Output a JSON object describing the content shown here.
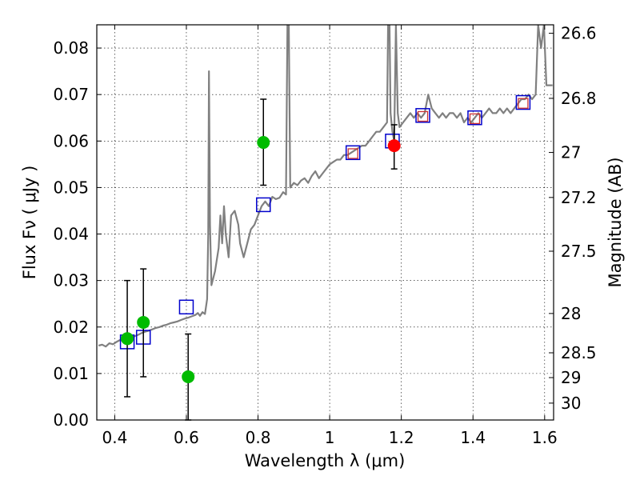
{
  "chart_data": {
    "type": "scatter",
    "xlabel": "Wavelength  λ (μm)",
    "ylabel": "Flux  Fν  ( μJy )",
    "y2label": "Magnitude (AB)",
    "xlim": [
      0.35,
      1.625
    ],
    "ylim": [
      0.0,
      0.085
    ],
    "grid": true,
    "x_ticks": [
      {
        "value": 0.4,
        "label": "0.4"
      },
      {
        "value": 0.6,
        "label": "0.6"
      },
      {
        "value": 0.8,
        "label": "0.8"
      },
      {
        "value": 1.0,
        "label": "1"
      },
      {
        "value": 1.2,
        "label": "1.2"
      },
      {
        "value": 1.4,
        "label": "1.4"
      },
      {
        "value": 1.6,
        "label": "1.6"
      }
    ],
    "y_ticks": [
      {
        "value": 0.0,
        "label": "0.00"
      },
      {
        "value": 0.01,
        "label": "0.01"
      },
      {
        "value": 0.02,
        "label": "0.02"
      },
      {
        "value": 0.03,
        "label": "0.03"
      },
      {
        "value": 0.04,
        "label": "0.04"
      },
      {
        "value": 0.05,
        "label": "0.05"
      },
      {
        "value": 0.06,
        "label": "0.06"
      },
      {
        "value": 0.07,
        "label": "0.07"
      },
      {
        "value": 0.08,
        "label": "0.08"
      }
    ],
    "mag_ticks": [
      {
        "mag": 26.6,
        "label": "26.6"
      },
      {
        "mag": 26.8,
        "label": "26.8"
      },
      {
        "mag": 27.0,
        "label": "27"
      },
      {
        "mag": 27.2,
        "label": "27.2"
      },
      {
        "mag": 27.5,
        "label": "27.5"
      },
      {
        "mag": 28.0,
        "label": "28"
      },
      {
        "mag": 28.5,
        "label": "28.5"
      },
      {
        "mag": 29.0,
        "label": "29"
      },
      {
        "mag": 30.0,
        "label": "30"
      }
    ],
    "colors": {
      "spectrum": "#808080",
      "model_square": "#0000cc",
      "detection": "#00bb00",
      "highlight": "#ff0000",
      "errorbar": "#000000",
      "inner_square": "#cc3333"
    },
    "spectrum": [
      [
        0.355,
        0.016
      ],
      [
        0.365,
        0.0162
      ],
      [
        0.375,
        0.0158
      ],
      [
        0.385,
        0.0165
      ],
      [
        0.395,
        0.0163
      ],
      [
        0.405,
        0.0168
      ],
      [
        0.415,
        0.0172
      ],
      [
        0.425,
        0.017
      ],
      [
        0.435,
        0.0175
      ],
      [
        0.445,
        0.0178
      ],
      [
        0.455,
        0.018
      ],
      [
        0.465,
        0.0183
      ],
      [
        0.475,
        0.0187
      ],
      [
        0.485,
        0.019
      ],
      [
        0.495,
        0.0192
      ],
      [
        0.505,
        0.0195
      ],
      [
        0.515,
        0.0198
      ],
      [
        0.525,
        0.02
      ],
      [
        0.535,
        0.0203
      ],
      [
        0.545,
        0.0205
      ],
      [
        0.555,
        0.0208
      ],
      [
        0.565,
        0.021
      ],
      [
        0.575,
        0.0212
      ],
      [
        0.585,
        0.0215
      ],
      [
        0.595,
        0.0218
      ],
      [
        0.605,
        0.022
      ],
      [
        0.615,
        0.0223
      ],
      [
        0.625,
        0.0226
      ],
      [
        0.632,
        0.023
      ],
      [
        0.638,
        0.0224
      ],
      [
        0.645,
        0.0232
      ],
      [
        0.652,
        0.0228
      ],
      [
        0.658,
        0.026
      ],
      [
        0.661,
        0.04
      ],
      [
        0.663,
        0.075
      ],
      [
        0.666,
        0.042
      ],
      [
        0.67,
        0.029
      ],
      [
        0.68,
        0.032
      ],
      [
        0.69,
        0.037
      ],
      [
        0.695,
        0.044
      ],
      [
        0.7,
        0.038
      ],
      [
        0.705,
        0.046
      ],
      [
        0.71,
        0.04
      ],
      [
        0.718,
        0.035
      ],
      [
        0.725,
        0.044
      ],
      [
        0.735,
        0.045
      ],
      [
        0.745,
        0.042
      ],
      [
        0.75,
        0.038
      ],
      [
        0.76,
        0.035
      ],
      [
        0.77,
        0.038
      ],
      [
        0.78,
        0.041
      ],
      [
        0.79,
        0.042
      ],
      [
        0.8,
        0.044
      ],
      [
        0.81,
        0.046
      ],
      [
        0.82,
        0.047
      ],
      [
        0.83,
        0.046
      ],
      [
        0.84,
        0.048
      ],
      [
        0.85,
        0.0475
      ],
      [
        0.86,
        0.0478
      ],
      [
        0.87,
        0.049
      ],
      [
        0.878,
        0.0485
      ],
      [
        0.882,
        0.085
      ],
      [
        0.886,
        0.085
      ],
      [
        0.89,
        0.05
      ],
      [
        0.9,
        0.051
      ],
      [
        0.91,
        0.0505
      ],
      [
        0.92,
        0.0515
      ],
      [
        0.93,
        0.052
      ],
      [
        0.94,
        0.051
      ],
      [
        0.95,
        0.0525
      ],
      [
        0.96,
        0.0535
      ],
      [
        0.97,
        0.052
      ],
      [
        0.98,
        0.053
      ],
      [
        0.99,
        0.054
      ],
      [
        1.0,
        0.055
      ],
      [
        1.01,
        0.0555
      ],
      [
        1.02,
        0.056
      ],
      [
        1.03,
        0.056
      ],
      [
        1.04,
        0.057
      ],
      [
        1.05,
        0.057
      ],
      [
        1.06,
        0.0575
      ],
      [
        1.07,
        0.058
      ],
      [
        1.08,
        0.0585
      ],
      [
        1.09,
        0.059
      ],
      [
        1.1,
        0.059
      ],
      [
        1.11,
        0.06
      ],
      [
        1.12,
        0.061
      ],
      [
        1.13,
        0.062
      ],
      [
        1.14,
        0.062
      ],
      [
        1.15,
        0.063
      ],
      [
        1.16,
        0.064
      ],
      [
        1.163,
        0.085
      ],
      [
        1.167,
        0.085
      ],
      [
        1.17,
        0.066
      ],
      [
        1.175,
        0.062
      ],
      [
        1.18,
        0.06
      ],
      [
        1.185,
        0.085
      ],
      [
        1.19,
        0.066
      ],
      [
        1.195,
        0.063
      ],
      [
        1.205,
        0.064
      ],
      [
        1.215,
        0.065
      ],
      [
        1.225,
        0.066
      ],
      [
        1.235,
        0.065
      ],
      [
        1.245,
        0.066
      ],
      [
        1.255,
        0.065
      ],
      [
        1.265,
        0.066
      ],
      [
        1.275,
        0.07
      ],
      [
        1.285,
        0.067
      ],
      [
        1.295,
        0.066
      ],
      [
        1.305,
        0.065
      ],
      [
        1.315,
        0.066
      ],
      [
        1.325,
        0.065
      ],
      [
        1.335,
        0.066
      ],
      [
        1.345,
        0.066
      ],
      [
        1.355,
        0.065
      ],
      [
        1.365,
        0.066
      ],
      [
        1.375,
        0.064
      ],
      [
        1.385,
        0.065
      ],
      [
        1.395,
        0.064
      ],
      [
        1.405,
        0.065
      ],
      [
        1.415,
        0.066
      ],
      [
        1.425,
        0.065
      ],
      [
        1.435,
        0.066
      ],
      [
        1.445,
        0.067
      ],
      [
        1.455,
        0.066
      ],
      [
        1.465,
        0.066
      ],
      [
        1.475,
        0.067
      ],
      [
        1.485,
        0.066
      ],
      [
        1.495,
        0.067
      ],
      [
        1.505,
        0.066
      ],
      [
        1.515,
        0.067
      ],
      [
        1.525,
        0.068
      ],
      [
        1.535,
        0.069
      ],
      [
        1.545,
        0.069
      ],
      [
        1.555,
        0.07
      ],
      [
        1.565,
        0.069
      ],
      [
        1.575,
        0.07
      ],
      [
        1.582,
        0.085
      ],
      [
        1.59,
        0.08
      ],
      [
        1.598,
        0.085
      ],
      [
        1.605,
        0.072
      ],
      [
        1.615,
        0.072
      ],
      [
        1.622,
        0.072
      ]
    ],
    "model_squares": [
      {
        "x": 0.435,
        "y": 0.0168
      },
      {
        "x": 0.48,
        "y": 0.0178
      },
      {
        "x": 0.6,
        "y": 0.0243
      },
      {
        "x": 0.815,
        "y": 0.0463
      },
      {
        "x": 1.065,
        "y": 0.0575
      },
      {
        "x": 1.175,
        "y": 0.06
      },
      {
        "x": 1.26,
        "y": 0.0655
      },
      {
        "x": 1.405,
        "y": 0.065
      },
      {
        "x": 1.54,
        "y": 0.0683
      }
    ],
    "inner_squares": [
      {
        "x": 1.065,
        "y": 0.0573
      },
      {
        "x": 1.26,
        "y": 0.0653
      },
      {
        "x": 1.405,
        "y": 0.0648
      },
      {
        "x": 1.54,
        "y": 0.0681
      }
    ],
    "detections": [
      {
        "x": 0.435,
        "y": 0.0175,
        "ylow": 0.005,
        "yhigh": 0.03,
        "color": "green"
      },
      {
        "x": 0.48,
        "y": 0.021,
        "ylow": 0.0093,
        "yhigh": 0.0325,
        "color": "green"
      },
      {
        "x": 0.605,
        "y": 0.0093,
        "ylow": 0.0,
        "yhigh": 0.0185,
        "color": "green"
      },
      {
        "x": 0.815,
        "y": 0.0597,
        "ylow": 0.0505,
        "yhigh": 0.069,
        "color": "green"
      },
      {
        "x": 1.18,
        "y": 0.059,
        "ylow": 0.054,
        "yhigh": 0.0635,
        "color": "red"
      }
    ]
  }
}
